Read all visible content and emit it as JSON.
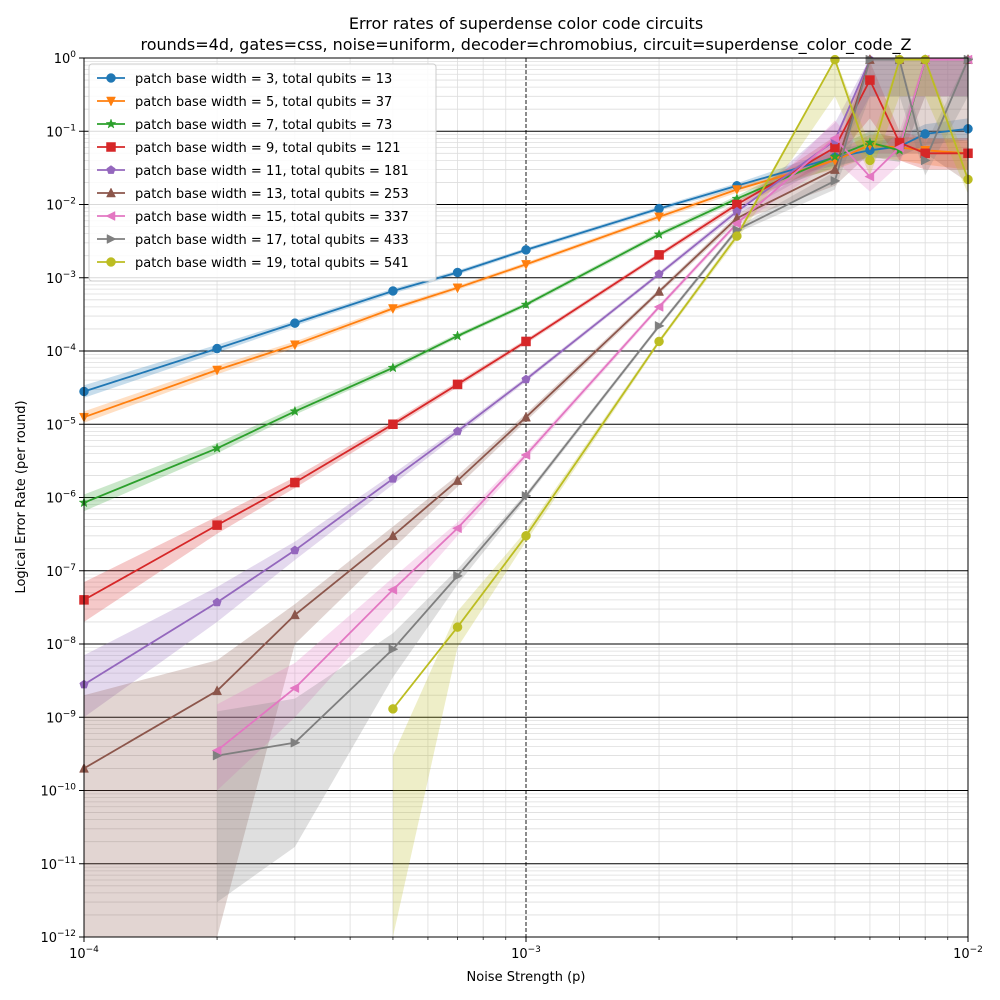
{
  "chart_data": {
    "type": "line",
    "title": "Error rates of superdense color code circuits",
    "subtitle": "rounds=4d, gates=css, noise=uniform, decoder=chromobius, circuit=superdense_color_code_Z",
    "xlabel": "Noise Strength (p)",
    "ylabel": "Logical Error Rate (per round)",
    "xscale": "log",
    "yscale": "log",
    "xlim": [
      0.0001,
      0.01
    ],
    "ylim": [
      1e-12,
      1
    ],
    "grid": true,
    "legend_position": "top-left",
    "x_tick_labels": [
      {
        "base": "10",
        "exp": "−4",
        "value": 0.0001
      },
      {
        "base": "10",
        "exp": "−3",
        "value": 0.001
      },
      {
        "base": "10",
        "exp": "−2",
        "value": 0.01
      }
    ],
    "y_tick_labels": [
      {
        "base": "10",
        "exp": "0",
        "value": 1
      },
      {
        "base": "10",
        "exp": "−1",
        "value": 0.1
      },
      {
        "base": "10",
        "exp": "−2",
        "value": 0.01
      },
      {
        "base": "10",
        "exp": "−3",
        "value": 0.001
      },
      {
        "base": "10",
        "exp": "−4",
        "value": 0.0001
      },
      {
        "base": "10",
        "exp": "−5",
        "value": 1e-05
      },
      {
        "base": "10",
        "exp": "−6",
        "value": 1e-06
      },
      {
        "base": "10",
        "exp": "−7",
        "value": 1e-07
      },
      {
        "base": "10",
        "exp": "−8",
        "value": 1e-08
      },
      {
        "base": "10",
        "exp": "−9",
        "value": 1e-09
      },
      {
        "base": "10",
        "exp": "−10",
        "value": 1e-10
      },
      {
        "base": "10",
        "exp": "−11",
        "value": 1e-11
      },
      {
        "base": "10",
        "exp": "−12",
        "value": 1e-12
      }
    ],
    "series": [
      {
        "name": "patch base width = 3, total qubits = 13",
        "color": "#1f77b4",
        "marker": "circle",
        "x": [
          0.0001,
          0.0002,
          0.0003,
          0.0005,
          0.0007,
          0.001,
          0.002,
          0.003,
          0.005,
          0.006,
          0.007,
          0.008,
          0.01
        ],
        "y": [
          2.8e-05,
          0.000108,
          0.00024,
          0.00066,
          0.00118,
          0.0024,
          0.0088,
          0.018,
          0.044,
          0.055,
          0.062,
          0.092,
          0.108
        ],
        "band_lo": [
          2.3e-05,
          9.5e-05,
          0.00022,
          0.00061,
          0.0011,
          0.00225,
          0.0082,
          0.0165,
          0.034,
          0.042,
          0.045,
          0.065,
          0.075
        ],
        "band_hi": [
          3.4e-05,
          0.000122,
          0.00026,
          0.00071,
          0.00126,
          0.00255,
          0.0094,
          0.0195,
          0.056,
          0.07,
          0.085,
          0.125,
          0.15
        ]
      },
      {
        "name": "patch base width = 5, total qubits = 37",
        "color": "#ff7f0e",
        "marker": "triangle-down",
        "x": [
          0.0001,
          0.0002,
          0.0003,
          0.0005,
          0.0007,
          0.001,
          0.002,
          0.003,
          0.005,
          0.006,
          0.007,
          0.008,
          0.01
        ],
        "y": [
          1.25e-05,
          5.5e-05,
          0.000122,
          0.00038,
          0.00073,
          0.00152,
          0.0068,
          0.016,
          0.04,
          0.065,
          0.06,
          0.055,
          0.05
        ],
        "band_lo": [
          1.05e-05,
          4.8e-05,
          0.00011,
          0.00035,
          0.00068,
          0.00142,
          0.0063,
          0.0145,
          0.03,
          0.045,
          0.04,
          0.035,
          0.03
        ],
        "band_hi": [
          1.5e-05,
          6.3e-05,
          0.000135,
          0.00041,
          0.00078,
          0.00162,
          0.0073,
          0.0175,
          0.052,
          0.09,
          0.085,
          0.08,
          0.075
        ]
      },
      {
        "name": "patch base width = 7, total qubits = 73",
        "color": "#2ca02c",
        "marker": "star",
        "x": [
          0.0001,
          0.0002,
          0.0003,
          0.0005,
          0.0007,
          0.001,
          0.002,
          0.003,
          0.005,
          0.006,
          0.007,
          0.008,
          0.01
        ],
        "y": [
          8.5e-07,
          4.7e-06,
          1.5e-05,
          5.9e-05,
          0.00016,
          0.00043,
          0.0039,
          0.012,
          0.045,
          0.07,
          0.055,
          0.95,
          0.95
        ],
        "band_lo": [
          6.5e-07,
          4e-06,
          1.35e-05,
          5.4e-05,
          0.00015,
          0.0004,
          0.0036,
          0.011,
          0.032,
          0.045,
          0.038,
          0.3,
          0.3
        ],
        "band_hi": [
          1.1e-06,
          5.5e-06,
          1.7e-05,
          6.5e-05,
          0.000172,
          0.00046,
          0.0042,
          0.0132,
          0.06,
          0.1,
          0.08,
          1.0,
          1.0
        ]
      },
      {
        "name": "patch base width = 9, total qubits = 121",
        "color": "#d62728",
        "marker": "square",
        "x": [
          0.0001,
          0.0002,
          0.0003,
          0.0005,
          0.0007,
          0.001,
          0.002,
          0.003,
          0.005,
          0.006,
          0.007,
          0.008,
          0.01
        ],
        "y": [
          4e-08,
          4.2e-07,
          1.6e-06,
          1e-05,
          3.5e-05,
          0.000135,
          0.00205,
          0.01,
          0.06,
          0.5,
          0.07,
          0.05,
          0.05
        ],
        "band_lo": [
          2e-08,
          3.2e-07,
          1.35e-06,
          9e-06,
          3.2e-05,
          0.000125,
          0.0019,
          0.009,
          0.04,
          0.15,
          0.04,
          0.03,
          0.03
        ],
        "band_hi": [
          7e-08,
          5.5e-07,
          1.9e-06,
          1.1e-05,
          3.8e-05,
          0.000145,
          0.0022,
          0.011,
          0.085,
          0.9,
          0.1,
          0.08,
          0.08
        ]
      },
      {
        "name": "patch base width = 11, total qubits = 181",
        "color": "#9467bd",
        "marker": "pentagon",
        "x": [
          0.0001,
          0.0002,
          0.0003,
          0.0005,
          0.0007,
          0.001,
          0.002,
          0.003,
          0.005,
          0.006,
          0.007,
          0.008,
          0.01
        ],
        "y": [
          2.8e-09,
          3.7e-08,
          1.9e-07,
          1.8e-06,
          8e-06,
          4.1e-05,
          0.00112,
          0.008,
          0.075,
          0.95,
          0.95,
          0.95,
          0.95
        ],
        "band_lo": [
          1e-09,
          2e-08,
          1.4e-07,
          1.5e-06,
          7.2e-06,
          3.8e-05,
          0.00105,
          0.0072,
          0.04,
          0.3,
          0.3,
          0.3,
          0.3
        ],
        "band_hi": [
          7e-09,
          6e-08,
          2.5e-07,
          2.1e-06,
          8.8e-06,
          4.4e-05,
          0.0012,
          0.0088,
          0.13,
          1.0,
          1.0,
          1.0,
          1.0
        ]
      },
      {
        "name": "patch base width = 13, total qubits = 253",
        "color": "#8c564b",
        "marker": "triangle-up",
        "x": [
          0.0001,
          0.0002,
          0.0003,
          0.0005,
          0.0007,
          0.001,
          0.002,
          0.003,
          0.005,
          0.006,
          0.007,
          0.008,
          0.01
        ],
        "y": [
          2e-10,
          2.3e-09,
          2.5e-08,
          3e-07,
          1.7e-06,
          1.25e-05,
          0.00065,
          0.0065,
          0.03,
          0.95,
          0.95,
          0.95,
          0.95
        ],
        "band_lo": [
          1e-12,
          1e-12,
          1e-08,
          2e-07,
          1.4e-06,
          1.1e-05,
          0.0006,
          0.0058,
          0.018,
          0.05,
          0.05,
          0.05,
          0.02
        ],
        "band_hi": [
          2e-09,
          6e-09,
          3.5e-08,
          4e-07,
          2e-06,
          1.4e-05,
          0.0007,
          0.0072,
          0.05,
          1.0,
          1.0,
          1.0,
          1.0
        ]
      },
      {
        "name": "patch base width = 15, total qubits = 337",
        "color": "#e377c2",
        "marker": "triangle-left",
        "x": [
          0.0002,
          0.0003,
          0.0005,
          0.0007,
          0.001,
          0.002,
          0.003,
          0.005,
          0.006,
          0.007,
          0.008,
          0.01
        ],
        "y": [
          3.5e-10,
          2.5e-09,
          5.5e-08,
          3.8e-07,
          3.8e-06,
          0.0004,
          0.0055,
          0.08,
          0.024,
          0.06,
          0.95,
          0.95
        ],
        "band_lo": [
          1e-10,
          1e-09,
          3e-08,
          3e-07,
          3.4e-06,
          0.00037,
          0.005,
          0.04,
          0.015,
          0.035,
          0.3,
          0.3
        ],
        "band_hi": [
          1.5e-09,
          5.5e-09,
          8e-08,
          4.6e-07,
          4.2e-06,
          0.00043,
          0.006,
          0.14,
          0.04,
          0.1,
          1.0,
          1.0
        ]
      },
      {
        "name": "patch base width = 17, total qubits = 433",
        "color": "#7f7f7f",
        "marker": "triangle-right",
        "x": [
          0.0002,
          0.0003,
          0.0005,
          0.0007,
          0.001,
          0.002,
          0.003,
          0.005,
          0.006,
          0.007,
          0.008,
          0.01
        ],
        "y": [
          3e-10,
          4.5e-10,
          8.5e-09,
          8.5e-08,
          1.05e-06,
          0.00022,
          0.0045,
          0.021,
          0.95,
          0.95,
          0.04,
          0.95
        ],
        "band_lo": [
          3e-12,
          1.7e-11,
          3.5e-09,
          6.5e-08,
          9.5e-07,
          0.000205,
          0.0041,
          0.016,
          0.3,
          0.3,
          0.025,
          0.3
        ],
        "band_hi": [
          1.2e-09,
          1.8e-09,
          1.4e-08,
          1.05e-07,
          1.15e-06,
          0.000235,
          0.0049,
          0.028,
          1.0,
          1.0,
          0.065,
          1.0
        ]
      },
      {
        "name": "patch base width = 19, total qubits = 541",
        "color": "#bcbd22",
        "marker": "circle",
        "x": [
          0.0005,
          0.0007,
          0.001,
          0.002,
          0.003,
          0.005,
          0.006,
          0.007,
          0.008,
          0.01
        ],
        "y": [
          1.3e-09,
          1.7e-08,
          3e-07,
          0.000135,
          0.0037,
          0.95,
          0.04,
          0.95,
          0.95,
          0.022
        ],
        "band_lo": [
          1e-12,
          9e-09,
          2.5e-07,
          0.000125,
          0.0033,
          0.3,
          0.025,
          0.3,
          0.3,
          0.014
        ],
        "band_hi": [
          3e-10,
          2.8e-08,
          3.5e-07,
          0.000145,
          0.0041,
          1.0,
          0.065,
          1.0,
          1.0,
          0.035
        ]
      }
    ]
  }
}
